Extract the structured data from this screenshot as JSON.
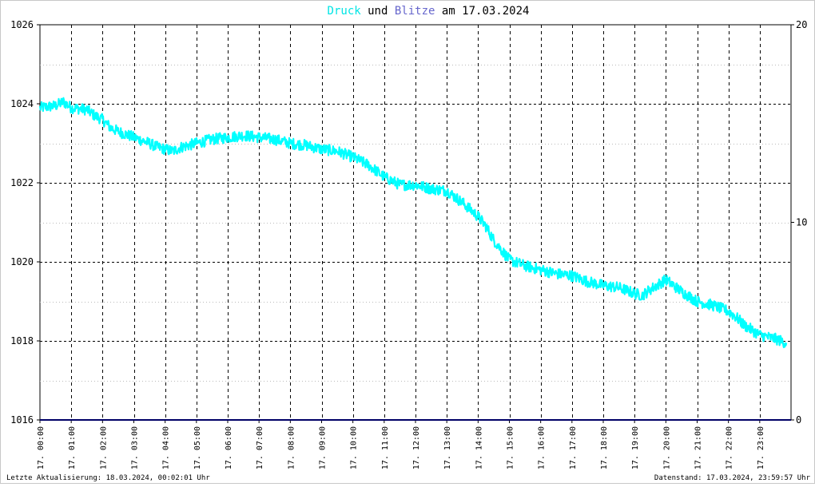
{
  "chart_data": {
    "type": "line",
    "title_parts": [
      {
        "text": "Druck",
        "color": "#00e5e5"
      },
      {
        "text": " und ",
        "color": "#000000"
      },
      {
        "text": "Blitze",
        "color": "#6666cc"
      },
      {
        "text": " am 17.03.2024",
        "color": "#000000"
      }
    ],
    "footer_left": "Letzte Aktualisierung: 18.03.2024, 00:02:01 Uhr",
    "footer_right": "Datenstand: 17.03.2024, 23:59:57 Uhr",
    "x_ticks": [
      "17. 00:00",
      "17. 01:00",
      "17. 02:00",
      "17. 03:00",
      "17. 04:00",
      "17. 05:00",
      "17. 06:00",
      "17. 07:00",
      "17. 08:00",
      "17. 09:00",
      "17. 10:00",
      "17. 11:00",
      "17. 12:00",
      "17. 13:00",
      "17. 14:00",
      "17. 15:00",
      "17. 16:00",
      "17. 17:00",
      "17. 18:00",
      "17. 19:00",
      "17. 20:00",
      "17. 21:00",
      "17. 22:00",
      "17. 23:00"
    ],
    "x_range_hours": [
      0,
      24
    ],
    "y_left": {
      "ticks": [
        "1016",
        "1018",
        "1020",
        "1022",
        "1024",
        "1026"
      ],
      "range": [
        1016,
        1026
      ]
    },
    "y_right": {
      "ticks": [
        "0",
        "10",
        "20"
      ],
      "range": [
        0,
        20
      ]
    },
    "grid": true,
    "series": [
      {
        "name": "Druck",
        "color": "#00ffff",
        "x_hours": [
          0,
          0.5,
          0.75,
          1,
          1.5,
          1.75,
          2,
          2.25,
          2.5,
          3,
          3.5,
          3.75,
          4,
          4.25,
          4.5,
          5,
          5.5,
          6,
          6.5,
          7,
          7.5,
          8,
          8.5,
          9,
          9.5,
          10,
          10.5,
          11,
          11.25,
          11.5,
          12,
          12.5,
          13,
          13.5,
          14,
          14.25,
          14.5,
          14.75,
          15,
          15.5,
          16,
          16.5,
          17,
          17.5,
          18,
          18.5,
          19,
          19.25,
          19.5,
          20,
          20.5,
          21,
          21.5,
          22,
          22.25,
          22.5,
          23,
          23.5,
          23.85
        ],
        "values": [
          1023.9,
          1023.95,
          1024.05,
          1023.9,
          1023.85,
          1023.7,
          1023.6,
          1023.4,
          1023.3,
          1023.15,
          1023.0,
          1022.9,
          1022.85,
          1022.8,
          1022.9,
          1023.0,
          1023.1,
          1023.15,
          1023.2,
          1023.15,
          1023.1,
          1023.0,
          1022.95,
          1022.85,
          1022.8,
          1022.65,
          1022.45,
          1022.15,
          1022.05,
          1021.95,
          1021.95,
          1021.85,
          1021.8,
          1021.5,
          1021.15,
          1020.9,
          1020.55,
          1020.3,
          1020.05,
          1019.9,
          1019.8,
          1019.7,
          1019.65,
          1019.5,
          1019.4,
          1019.35,
          1019.2,
          1019.15,
          1019.3,
          1019.55,
          1019.25,
          1019.0,
          1018.9,
          1018.75,
          1018.6,
          1018.4,
          1018.15,
          1018.05,
          1017.95
        ]
      },
      {
        "name": "Blitze",
        "color": "#000066",
        "x_hours": [
          0,
          24
        ],
        "values": [
          0,
          0
        ]
      }
    ]
  }
}
